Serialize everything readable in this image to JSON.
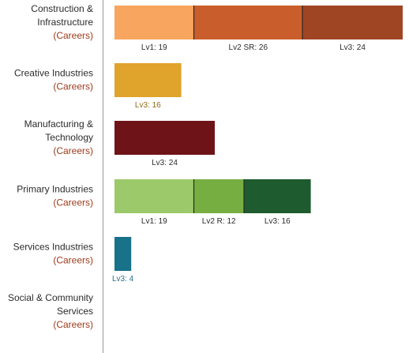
{
  "chart_data": {
    "type": "bar",
    "orientation": "horizontal",
    "stacked": true,
    "categories": [
      {
        "label_lines": [
          "Construction &",
          "Infrastructure"
        ],
        "sub": "(Careers)",
        "segments": [
          {
            "label": "Lv1: 19",
            "value": 19,
            "color": "#F8A65F",
            "label_color": "#2b2b2b"
          },
          {
            "label": "Lv2 SR: 26",
            "value": 26,
            "color": "#C95E2C",
            "label_color": "#2b2b2b"
          },
          {
            "label": "Lv3: 24",
            "value": 24,
            "color": "#A04523",
            "label_color": "#2b2b2b"
          }
        ]
      },
      {
        "label_lines": [
          "Creative Industries"
        ],
        "sub": "(Careers)",
        "segments": [
          {
            "label": "Lv3: 16",
            "value": 16,
            "color": "#E0A32C",
            "label_color": "#8a6a12"
          }
        ]
      },
      {
        "label_lines": [
          "Manufacturing &",
          "Technology"
        ],
        "sub": "(Careers)",
        "segments": [
          {
            "label": "Lv3: 24",
            "value": 24,
            "color": "#6E1419",
            "label_color": "#2b2b2b"
          }
        ]
      },
      {
        "label_lines": [
          "Primary Industries"
        ],
        "sub": "(Careers)",
        "segments": [
          {
            "label": "Lv1: 19",
            "value": 19,
            "color": "#9CC96A",
            "label_color": "#2b2b2b"
          },
          {
            "label": "Lv2 R: 12",
            "value": 12,
            "color": "#77AE42",
            "label_color": "#2b2b2b"
          },
          {
            "label": "Lv3: 16",
            "value": 16,
            "color": "#1E5B2E",
            "label_color": "#2b2b2b"
          }
        ]
      },
      {
        "label_lines": [
          "Services Industries"
        ],
        "sub": "(Careers)",
        "segments": [
          {
            "label": "Lv3: 4",
            "value": 4,
            "color": "#17728A",
            "label_color": "#2f6f8a"
          }
        ]
      },
      {
        "label_lines": [
          "Social & Community",
          "Services"
        ],
        "sub": "(Careers)",
        "segments": []
      }
    ],
    "xlim": [
      0,
      69
    ]
  }
}
